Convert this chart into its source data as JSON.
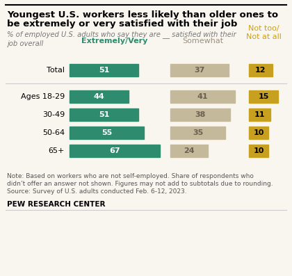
{
  "title_line1": "Youngest U.S. workers less likely than older ones to",
  "title_line2": "be extremely or very satisfied with their job",
  "subtitle": "% of employed U.S. adults who say they are __ satisfied with their\njob overall",
  "categories": [
    "Total",
    "Ages 18-29",
    "30-49",
    "50-64",
    "65+"
  ],
  "extremely_very": [
    51,
    44,
    51,
    55,
    67
  ],
  "somewhat": [
    37,
    41,
    38,
    35,
    24
  ],
  "not_too": [
    12,
    15,
    11,
    10,
    10
  ],
  "color_green": "#2e8b6e",
  "color_tan": "#c4b99a",
  "color_gold": "#c8a020",
  "col1_label": "Extremely/Very",
  "col2_label": "Somewhat",
  "col3_label": "Not too/\nNot at all",
  "col1_label_color": "#2e8b6e",
  "col2_label_color": "#9a9080",
  "col3_label_color": "#c8a020",
  "note_line1": "Note: Based on workers who are not self-employed. Share of respondents who",
  "note_line2": "didn’t offer an answer not shown. Figures may not add to subtotals due to rounding.",
  "note_line3": "Source: Survey of U.S. adults conducted Feb. 6-12, 2023.",
  "footer": "PEW RESEARCH CENTER",
  "bg_color": "#f9f6f0"
}
